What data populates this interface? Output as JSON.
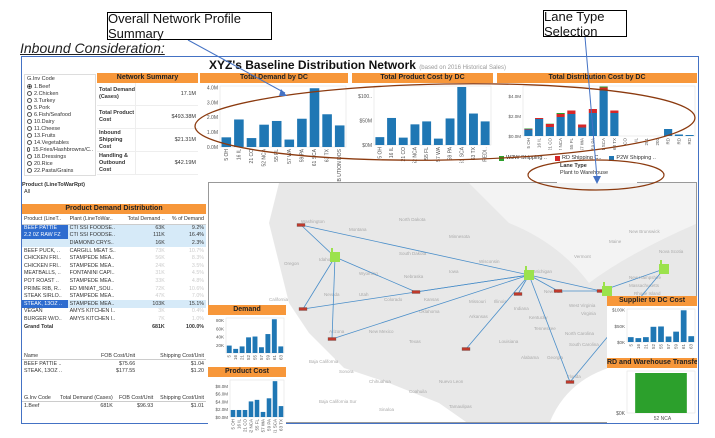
{
  "callouts": {
    "overall": "Overall Network Profile Summary",
    "lane": "Lane Type Selection"
  },
  "inbound_heading": "Inbound Consideration:",
  "title": "XYZ's Baseline Distribution Network",
  "subtitle": "(based on 2016 Historical Sales)",
  "filter": {
    "label": "G.Inv Code",
    "options": [
      "1.Beef",
      "2.Chicken",
      "3.Turkey",
      "5.Pork",
      "6.Fish/Seafood",
      "10.Dairy",
      "11.Cheese",
      "13.Fruits",
      "14.Vegetables",
      "15.Fries/Hashbrowns/C..",
      "18.Dressings",
      "20.Rice",
      "22.Pasta/Grains",
      "26.Bakery"
    ],
    "selected": "1.Beef"
  },
  "network_summary": {
    "title": "Network Summary",
    "rows": [
      {
        "label": "Total Demand (Cases)",
        "value": "17.1M"
      },
      {
        "label": "Total Product Cost",
        "value": "$493.38M"
      },
      {
        "label": "Inbound Shipping Cost",
        "value": "$21.31M"
      },
      {
        "label": "Handling & Outbound Cost",
        "value": "$42.19M"
      }
    ]
  },
  "product_filter": {
    "label": "Product (LineToWarRpt)",
    "value": "All"
  },
  "demand_dist": {
    "title": "Product Demand Distribution",
    "headers": [
      "Product (LineT..",
      "Plant (LineToWar..",
      "Total Demand ..",
      "% of Demand"
    ],
    "rows": [
      {
        "product": "BEEF PATTIE",
        "plant": "CTI SSI FOODSE..",
        "demand": "63K",
        "pct": "9.2%",
        "sel": true,
        "psel": true
      },
      {
        "product": "2.2 0Z RAW FZ",
        "plant": "CTI SSI FOODSE..",
        "demand": "111K",
        "pct": "16.4%",
        "sel": true,
        "psel": true
      },
      {
        "product": "",
        "plant": "DIAMOND CRYS..",
        "demand": "16K",
        "pct": "2.3%",
        "sel": true
      },
      {
        "product": "BEEF PUCK, ..",
        "plant": "CARGILL MEAT S..",
        "demand": "73K",
        "pct": "10.7%"
      },
      {
        "product": "CHICKEN FRI..",
        "plant": "STAMPEDE MEA..",
        "demand": "56K",
        "pct": "8.3%"
      },
      {
        "product": "CHICKEN FRI..",
        "plant": "STAMPEDE MEA..",
        "demand": "24K",
        "pct": "3.5%"
      },
      {
        "product": "MEATBALLS, ..",
        "plant": "FONTANINI CAPI..",
        "demand": "31K",
        "pct": "4.5%"
      },
      {
        "product": "POT ROAST ..",
        "plant": "STAMPEDE MEA..",
        "demand": "33K",
        "pct": "4.8%"
      },
      {
        "product": "PRIME RIB, R..",
        "plant": "ED MINIAT_SOU..",
        "demand": "72K",
        "pct": "10.6%"
      },
      {
        "product": "STEAK SIRLO..",
        "plant": "STAMPEDE MEA..",
        "demand": "47K",
        "pct": "7.0%"
      },
      {
        "product": "STEAK, 13OZ ..",
        "plant": "STAMPEDE MEA..",
        "demand": "103K",
        "pct": "15.1%",
        "sel": true,
        "psel": true
      },
      {
        "product": "VEGAN",
        "plant": "AMYS KITCHEN I..",
        "demand": "3K",
        "pct": "0.4%"
      },
      {
        "product": "BURGER W/O..",
        "plant": "AMYS KITCHEN I..",
        "demand": "7K",
        "pct": "1.0%"
      },
      {
        "product": "Grand Total",
        "plant": "",
        "demand": "681K",
        "pct": "100.0%",
        "bold": true
      }
    ]
  },
  "cost_table": {
    "headers": [
      "Name",
      "FOB Cost/Unit",
      "Shipping Cost/Unit"
    ],
    "rows": [
      [
        "BEEF PATTIE ..",
        "$75.66",
        "$1.04"
      ],
      [
        "STEAK, 13OZ ..",
        "$177.55",
        "$1.20"
      ]
    ]
  },
  "ginv_table": {
    "headers": [
      "G.Inv Code",
      "Total Demand (Cases)",
      "FOB Cost/Unit",
      "Shipping Cost/Unit"
    ],
    "rows": [
      [
        "1.Beef",
        "681K",
        "$96.93",
        "$1.01"
      ]
    ]
  },
  "lane_type": {
    "label": "Lane Type",
    "value": "Plant to Warehouse"
  },
  "map_labels": [
    "Washington",
    "Oregon",
    "Idaho",
    "Montana",
    "Wyoming",
    "North Dakota",
    "South Dakota",
    "Nebraska",
    "Minnesota",
    "Iowa",
    "Nevada",
    "Utah",
    "Colorado",
    "Kansas",
    "California",
    "Arizona",
    "New Mexico",
    "Texas",
    "Oklahoma",
    "Missouri",
    "Arkansas",
    "Louisiana",
    "Illinois",
    "Indiana",
    "Kentucky",
    "Tennessee",
    "Alabama",
    "Georgia",
    "Florida",
    "Michigan",
    "Wisconsin",
    "New York",
    "Vermont",
    "Maine",
    "New Brunswick",
    "Nova Scotia",
    "New Hampshire",
    "Massachusetts",
    "Rhode Island",
    "West Virginia",
    "Virginia",
    "North Carolina",
    "South Carolina",
    "Baja California",
    "Sonora",
    "Chihuahua",
    "Coahuila",
    "Nuevo Leon",
    "Tamaulipas",
    "Baja California Sur",
    "Sinaloa"
  ],
  "legend": [
    {
      "label": "W2W Shipping ..",
      "color": "#2ca02c"
    },
    {
      "label": "RD Shipping C..",
      "color": "#d62728"
    },
    {
      "label": "P2W Shipping ..",
      "color": "#1f77b4"
    }
  ],
  "chart_data": [
    {
      "id": "demand_dc",
      "type": "bar",
      "title": "Total Demand by DC",
      "categories": [
        "5 OH",
        "16 IL",
        "21 CO",
        "52 NCA",
        "55 FL",
        "57 WA",
        "59 PA",
        "61 SCA",
        "63 TX",
        "REDISTRIB UTION DOS"
      ],
      "values": [
        0.65,
        1.85,
        0.6,
        1.5,
        1.75,
        0.5,
        1.9,
        3.95,
        2.2,
        1.45
      ],
      "ticks": [
        0,
        1,
        2,
        3,
        4
      ],
      "tick_labels": [
        "0.0M",
        "1.0M",
        "2.0M",
        "3.0M",
        "4.0M"
      ],
      "ylim": [
        0,
        4.1
      ]
    },
    {
      "id": "prodcost_dc",
      "type": "bar",
      "title": "Total Product Cost by DC",
      "categories": [
        "5 OH",
        "16 IL",
        "21 CO",
        "52 NCA",
        "55 FL",
        "57 WA",
        "59 PA",
        "61 SCA",
        "63 TX",
        "REDI.."
      ],
      "values": [
        16,
        55,
        15,
        42,
        48,
        13,
        54,
        118,
        64,
        48
      ],
      "ticks": [
        0,
        50,
        100
      ],
      "tick_labels": [
        "$0M",
        "$50M",
        "$100.."
      ],
      "ylim": [
        0,
        120
      ]
    },
    {
      "id": "distcost_dc",
      "type": "stacked-bar",
      "title": "Total Distribution Cost by DC",
      "categories": [
        "5 OH",
        "16 IL",
        "21 CO",
        "52 NCA",
        "55 FL",
        "57 WA",
        "59 PA",
        "61 SCA",
        "63 TX",
        "CO",
        "IL",
        "201",
        "202",
        "RD",
        "RD",
        "RD"
      ],
      "series": [
        {
          "name": "P2W Shipping",
          "color": "#1f77b4",
          "values": [
            0.65,
            1.7,
            0.9,
            1.9,
            2.2,
            0.85,
            2.3,
            4.55,
            2.3,
            0,
            0,
            0,
            0,
            0.7,
            0.15,
            0.1
          ]
        },
        {
          "name": "RD Shipping",
          "color": "#d62728",
          "values": [
            0.05,
            0.1,
            0.3,
            0.3,
            0.35,
            0.3,
            0.4,
            0.3,
            0.25,
            0,
            0,
            0,
            0,
            0,
            0,
            0
          ]
        },
        {
          "name": "W2W Shipping",
          "color": "#2ca02c",
          "values": [
            0.05,
            0,
            0.03,
            0.1,
            0,
            0,
            0,
            0.1,
            0,
            0,
            0,
            0,
            0,
            0,
            0,
            0
          ]
        }
      ],
      "ticks": [
        0,
        2,
        4
      ],
      "tick_labels": [
        "$0.0M",
        "$2.0M",
        "$4.0M"
      ],
      "ylim": [
        0,
        5
      ]
    },
    {
      "id": "demand_small",
      "type": "bar",
      "title": "Demand",
      "categories": [
        "5",
        "16",
        "21",
        "52",
        "55",
        "57",
        "59",
        "61",
        "63"
      ],
      "values": [
        18,
        10,
        16,
        38,
        40,
        14,
        46,
        82,
        16
      ],
      "ticks": [
        20,
        40,
        60,
        80
      ],
      "tick_labels": [
        "20K",
        "40K",
        "60K",
        "80K"
      ],
      "ylim": [
        0,
        85
      ]
    },
    {
      "id": "prodcost_small",
      "type": "bar",
      "title": "Product Cost",
      "categories": [
        "5 OH",
        "16 IL",
        "21 CO",
        "52 NCA",
        "55 FL",
        "57 WA",
        "59 PA",
        "61 SCA",
        "63 TX"
      ],
      "values": [
        1.8,
        1.8,
        1.8,
        4.0,
        4.4,
        1.3,
        4.8,
        9.2,
        2.8
      ],
      "ticks": [
        0,
        2,
        4,
        6,
        8
      ],
      "tick_labels": [
        "$0.0M",
        "$2.0M",
        "$4.0M",
        "$6.0M",
        "$8.0M"
      ],
      "ylim": [
        0,
        9.5
      ]
    },
    {
      "id": "supplier_dc",
      "type": "bar",
      "title": "Supplier to DC Cost",
      "categories": [
        "5",
        "16",
        "21",
        "52",
        "55",
        "57",
        "59",
        "61",
        "63"
      ],
      "values": [
        15,
        12,
        15,
        47,
        48,
        17,
        32,
        98,
        18
      ],
      "ticks": [
        0,
        50,
        100
      ],
      "tick_labels": [
        "$0K",
        "$50K",
        "$100K"
      ],
      "ylim": [
        0,
        102
      ]
    },
    {
      "id": "rd_transfer",
      "type": "bar",
      "title": "RD and Warehouse Transfer",
      "categories": [
        "52 NCA"
      ],
      "values": [
        1
      ],
      "color": "#2ca02c",
      "ticks": [
        0
      ],
      "tick_labels": [
        "$0K"
      ],
      "ylim": [
        0,
        1.05
      ]
    }
  ]
}
